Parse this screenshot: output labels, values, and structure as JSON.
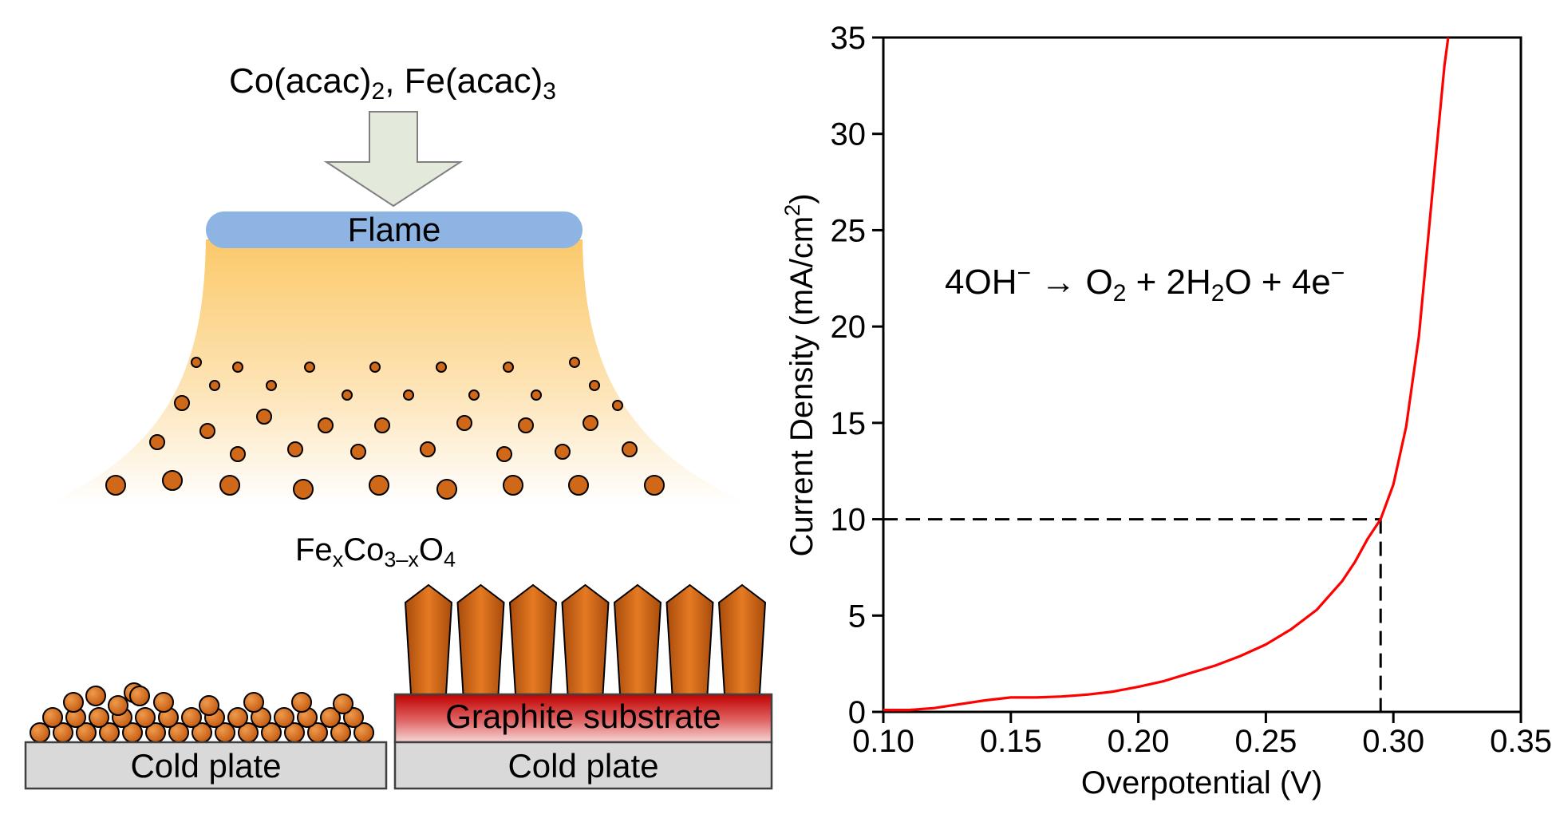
{
  "schematic": {
    "precursor_main_1": "Co(acac)",
    "precursor_sub_1": "2",
    "precursor_main_2": ", Fe(acac)",
    "precursor_sub_2": "3",
    "flame_label": "Flame",
    "product_fe": "Fe",
    "product_x": "x",
    "product_co": "Co",
    "product_sub": "3–x",
    "product_o": "O",
    "product_o_sub": "4",
    "substrate_label": "Graphite substrate",
    "cold_plate_left": "Cold plate",
    "cold_plate_right": "Cold plate",
    "colors": {
      "particle": "#d0681a",
      "flame_band": "#8eb4e3",
      "arrow": "#e4eadb",
      "substrate_top": "#c00000",
      "plate": "#d9d9d9"
    }
  },
  "chart_data": {
    "type": "line",
    "xlabel": "Overpotential (V)",
    "ylabel_main": "Current Density (mA/cm",
    "ylabel_sup": "2",
    "ylabel_close": ")",
    "xlim": [
      0.1,
      0.35
    ],
    "ylim": [
      0,
      35
    ],
    "xticks": [
      "0.10",
      "0.15",
      "0.20",
      "0.25",
      "0.30",
      "0.35"
    ],
    "yticks": [
      "0",
      "5",
      "10",
      "15",
      "20",
      "25",
      "30",
      "35"
    ],
    "series": [
      {
        "color": "#ff0000",
        "x": [
          0.1,
          0.11,
          0.12,
          0.13,
          0.14,
          0.15,
          0.16,
          0.17,
          0.18,
          0.19,
          0.2,
          0.21,
          0.22,
          0.23,
          0.24,
          0.25,
          0.26,
          0.27,
          0.28,
          0.285,
          0.29,
          0.295,
          0.3,
          0.305,
          0.31,
          0.315,
          0.32,
          0.3215
        ],
        "y": [
          0.1,
          0.1,
          0.2,
          0.4,
          0.6,
          0.75,
          0.75,
          0.8,
          0.9,
          1.05,
          1.3,
          1.6,
          2.0,
          2.4,
          2.9,
          3.5,
          4.3,
          5.3,
          6.8,
          7.8,
          9.0,
          10.0,
          11.8,
          14.8,
          19.5,
          26.5,
          33.5,
          35.0
        ]
      }
    ],
    "reference_point": {
      "x": 0.295,
      "y": 10
    },
    "annotation": {
      "pre": "4OH",
      "pre_sup": "−",
      "arrow": " → O",
      "o_sub": "2",
      "mid": " + 2H",
      "h_sub": "2",
      "post": "O + 4e",
      "post_sup": "−"
    }
  }
}
